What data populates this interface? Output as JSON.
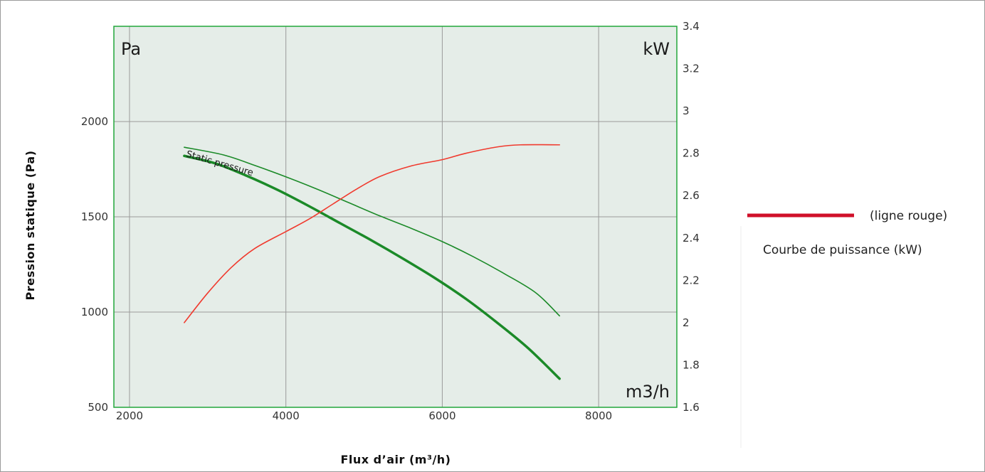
{
  "chart_data": {
    "type": "line",
    "xlabel": "Flux d’air (m³/h)",
    "ylabel": "Pression statique (Pa)",
    "y2label": "",
    "unit_left": "Pa",
    "unit_right": "kW",
    "unit_bottom": "m3/h",
    "xlim": [
      1800,
      9000
    ],
    "ylim": [
      500,
      2500
    ],
    "y2lim": [
      1.6,
      3.4
    ],
    "xticks": [
      "2000",
      "4000",
      "6000",
      "8000"
    ],
    "yticks": [
      "500",
      "1000",
      "1500",
      "2000"
    ],
    "y2ticks": [
      "1.6",
      "1.8",
      "2",
      "2.2",
      "2.4",
      "2.6",
      "2.8",
      "3",
      "3.2",
      "3.4"
    ],
    "xtick_values": [
      2000,
      4000,
      6000,
      8000
    ],
    "ytick_values": [
      500,
      1000,
      1500,
      2000
    ],
    "y2tick_values": [
      1.6,
      1.8,
      2.0,
      2.2,
      2.4,
      2.6,
      2.8,
      3.0,
      3.2,
      3.4
    ],
    "grid": true,
    "background": "#e5ede8",
    "series": [
      {
        "axis": "left",
        "color": "#1b8a28",
        "label": "Static pressure",
        "emphasis": "thin",
        "x": [
          2700,
          3200,
          3600,
          4000,
          4400,
          4800,
          5200,
          5600,
          6000,
          6400,
          6800,
          7200,
          7500
        ],
        "y": [
          1865,
          1825,
          1770,
          1710,
          1645,
          1575,
          1505,
          1440,
          1370,
          1290,
          1200,
          1100,
          980
        ]
      },
      {
        "axis": "left",
        "color": "#1b8a28",
        "emphasis": "thick",
        "x": [
          2700,
          3100,
          3500,
          3900,
          4300,
          4700,
          5100,
          5500,
          5900,
          6300,
          6700,
          7100,
          7500
        ],
        "y": [
          1820,
          1780,
          1715,
          1640,
          1555,
          1465,
          1375,
          1280,
          1180,
          1070,
          945,
          810,
          650
        ]
      },
      {
        "axis": "right",
        "color": "#f03a2e",
        "x": [
          2700,
          3000,
          3300,
          3600,
          4000,
          4300,
          4600,
          4900,
          5200,
          5600,
          6000,
          6300,
          6700,
          7000,
          7500
        ],
        "y": [
          2.0,
          2.14,
          2.26,
          2.35,
          2.43,
          2.49,
          2.56,
          2.63,
          2.69,
          2.74,
          2.77,
          2.8,
          2.83,
          2.84,
          2.84
        ]
      }
    ]
  },
  "legend": {
    "color": "#d0102a",
    "line_text": "(ligne rouge)",
    "caption": "Courbe de puissance (kW)"
  }
}
